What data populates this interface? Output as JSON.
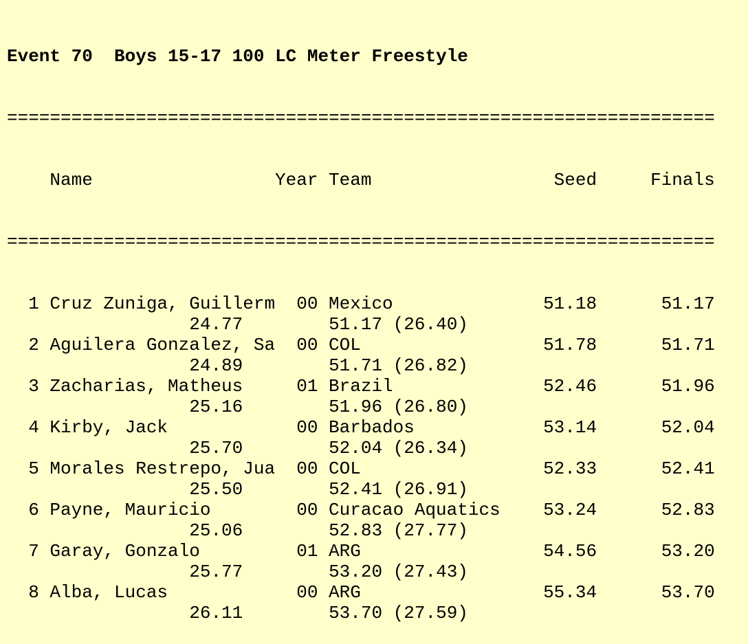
{
  "event": {
    "title": "Event 70  Boys 15-17 100 LC Meter Freestyle"
  },
  "separator": "==================================================================",
  "header": {
    "name": "Name",
    "year": "Year",
    "team": "Team",
    "seed": "Seed",
    "finals": "Finals"
  },
  "results": [
    {
      "place": "1",
      "name": "Cruz Zuniga, Guillerm",
      "year": "00",
      "team": "Mexico",
      "seed": "51.18",
      "finals": "51.17",
      "split50": "24.77",
      "split100": "51.17 (26.40)"
    },
    {
      "place": "2",
      "name": "Aguilera Gonzalez, Sa",
      "year": "00",
      "team": "COL",
      "seed": "51.78",
      "finals": "51.71",
      "split50": "24.89",
      "split100": "51.71 (26.82)"
    },
    {
      "place": "3",
      "name": "Zacharias, Matheus",
      "year": "01",
      "team": "Brazil",
      "seed": "52.46",
      "finals": "51.96",
      "split50": "25.16",
      "split100": "51.96 (26.80)"
    },
    {
      "place": "4",
      "name": "Kirby, Jack",
      "year": "00",
      "team": "Barbados",
      "seed": "53.14",
      "finals": "52.04",
      "split50": "25.70",
      "split100": "52.04 (26.34)"
    },
    {
      "place": "5",
      "name": "Morales Restrepo, Jua",
      "year": "00",
      "team": "COL",
      "seed": "52.33",
      "finals": "52.41",
      "split50": "25.50",
      "split100": "52.41 (26.91)"
    },
    {
      "place": "6",
      "name": "Payne, Mauricio",
      "year": "00",
      "team": "Curacao Aquatics",
      "seed": "53.24",
      "finals": "52.83",
      "split50": "25.06",
      "split100": "52.83 (27.77)"
    },
    {
      "place": "7",
      "name": "Garay, Gonzalo",
      "year": "01",
      "team": "ARG",
      "seed": "54.56",
      "finals": "53.20",
      "split50": "25.77",
      "split100": "53.20 (27.43)"
    },
    {
      "place": "8",
      "name": "Alba, Lucas",
      "year": "00",
      "team": "ARG",
      "seed": "55.34",
      "finals": "53.70",
      "split50": "26.11",
      "split100": "53.70 (27.59)"
    }
  ]
}
